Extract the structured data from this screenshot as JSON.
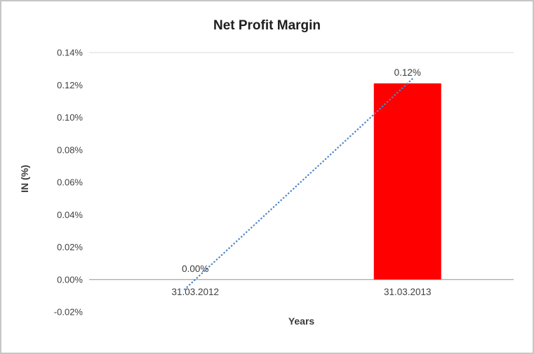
{
  "chart_data": {
    "type": "bar",
    "title": "Net Profit Margin",
    "xlabel": "Years",
    "ylabel": "IN (%)",
    "categories": [
      "31.03.2012",
      "31.03.2013"
    ],
    "values": [
      0.0,
      0.121
    ],
    "values_unit": "percent",
    "data_labels": [
      "0.00%",
      "0.12%"
    ],
    "y_ticks": [
      "-0.02%",
      "0.00%",
      "0.02%",
      "0.04%",
      "0.06%",
      "0.08%",
      "0.10%",
      "0.12%",
      "0.14%"
    ],
    "ylim": [
      -0.02,
      0.14
    ],
    "y_tick_step": 0.02,
    "grid": "top gridline and zero axis line only",
    "legend": "none",
    "trendline": {
      "style": "dotted",
      "from": {
        "category": "31.03.2012",
        "value": 0.0
      },
      "to": {
        "category": "31.03.2013",
        "value": 0.121
      }
    }
  },
  "colors": {
    "bar": "#ff0000",
    "trendline": "#4e86c6",
    "gridline": "#d9d9d9",
    "axis_line": "#a6a6a6",
    "text": "#404040",
    "title": "#1f1f1f",
    "frame_border": "#c6c6c6"
  }
}
